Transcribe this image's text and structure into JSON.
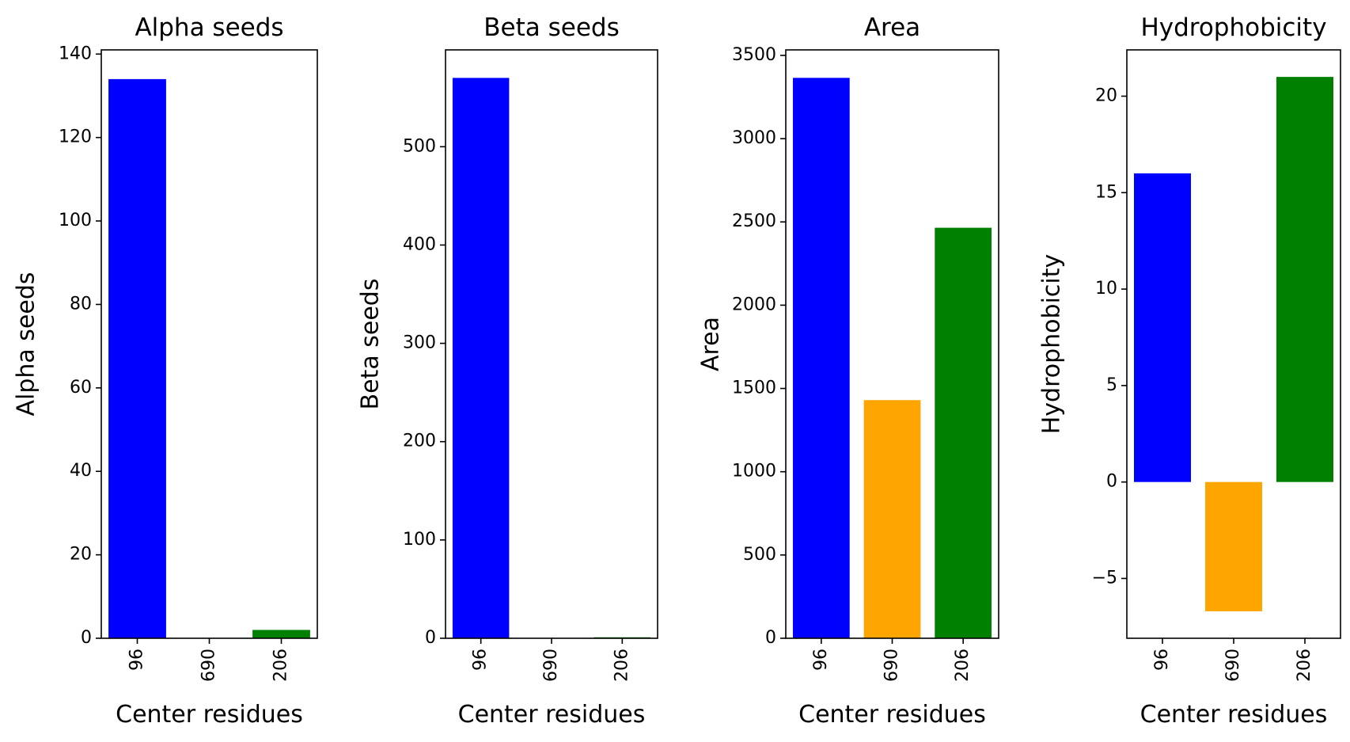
{
  "chart_data": [
    {
      "type": "bar",
      "title": "Alpha seeds",
      "xlabel": "Center residues",
      "ylabel": "Alpha seeds",
      "categories": [
        "96",
        "690",
        "206"
      ],
      "values": [
        134,
        0,
        2
      ],
      "colors": [
        "#0000ff",
        "#ffa500",
        "#008000"
      ],
      "ylim": [
        0,
        141
      ],
      "yticks": [
        0,
        20,
        40,
        60,
        80,
        100,
        120,
        140
      ],
      "ytick_labels": [
        "0",
        "20",
        "40",
        "60",
        "80",
        "100",
        "120",
        "140"
      ],
      "grid": false,
      "legend": false
    },
    {
      "type": "bar",
      "title": "Beta seeds",
      "xlabel": "Center residues",
      "ylabel": "Beta seeds",
      "categories": [
        "96",
        "690",
        "206"
      ],
      "values": [
        570,
        0,
        1
      ],
      "colors": [
        "#0000ff",
        "#ffa500",
        "#008000"
      ],
      "ylim": [
        0,
        598.5
      ],
      "yticks": [
        0,
        100,
        200,
        300,
        400,
        500
      ],
      "ytick_labels": [
        "0",
        "100",
        "200",
        "300",
        "400",
        "500"
      ],
      "grid": false,
      "legend": false
    },
    {
      "type": "bar",
      "title": "Area",
      "xlabel": "Center residues",
      "ylabel": "Area",
      "categories": [
        "96",
        "690",
        "206"
      ],
      "values": [
        3365,
        1430,
        2465
      ],
      "colors": [
        "#0000ff",
        "#ffa500",
        "#008000"
      ],
      "ylim": [
        0,
        3533
      ],
      "yticks": [
        0,
        500,
        1000,
        1500,
        2000,
        2500,
        3000,
        3500
      ],
      "ytick_labels": [
        "0",
        "500",
        "1000",
        "1500",
        "2000",
        "2500",
        "3000",
        "3500"
      ],
      "grid": false,
      "legend": false
    },
    {
      "type": "bar",
      "title": "Hydrophobicity",
      "xlabel": "Center residues",
      "ylabel": "Hydrophobicity",
      "categories": [
        "96",
        "690",
        "206"
      ],
      "values": [
        16,
        -6.7,
        21
      ],
      "colors": [
        "#0000ff",
        "#ffa500",
        "#008000"
      ],
      "ylim": [
        -8.1,
        22.4
      ],
      "yticks": [
        -5,
        0,
        5,
        10,
        15,
        20
      ],
      "ytick_labels": [
        "−5",
        "0",
        "5",
        "10",
        "15",
        "20"
      ],
      "grid": false,
      "legend": false
    }
  ]
}
